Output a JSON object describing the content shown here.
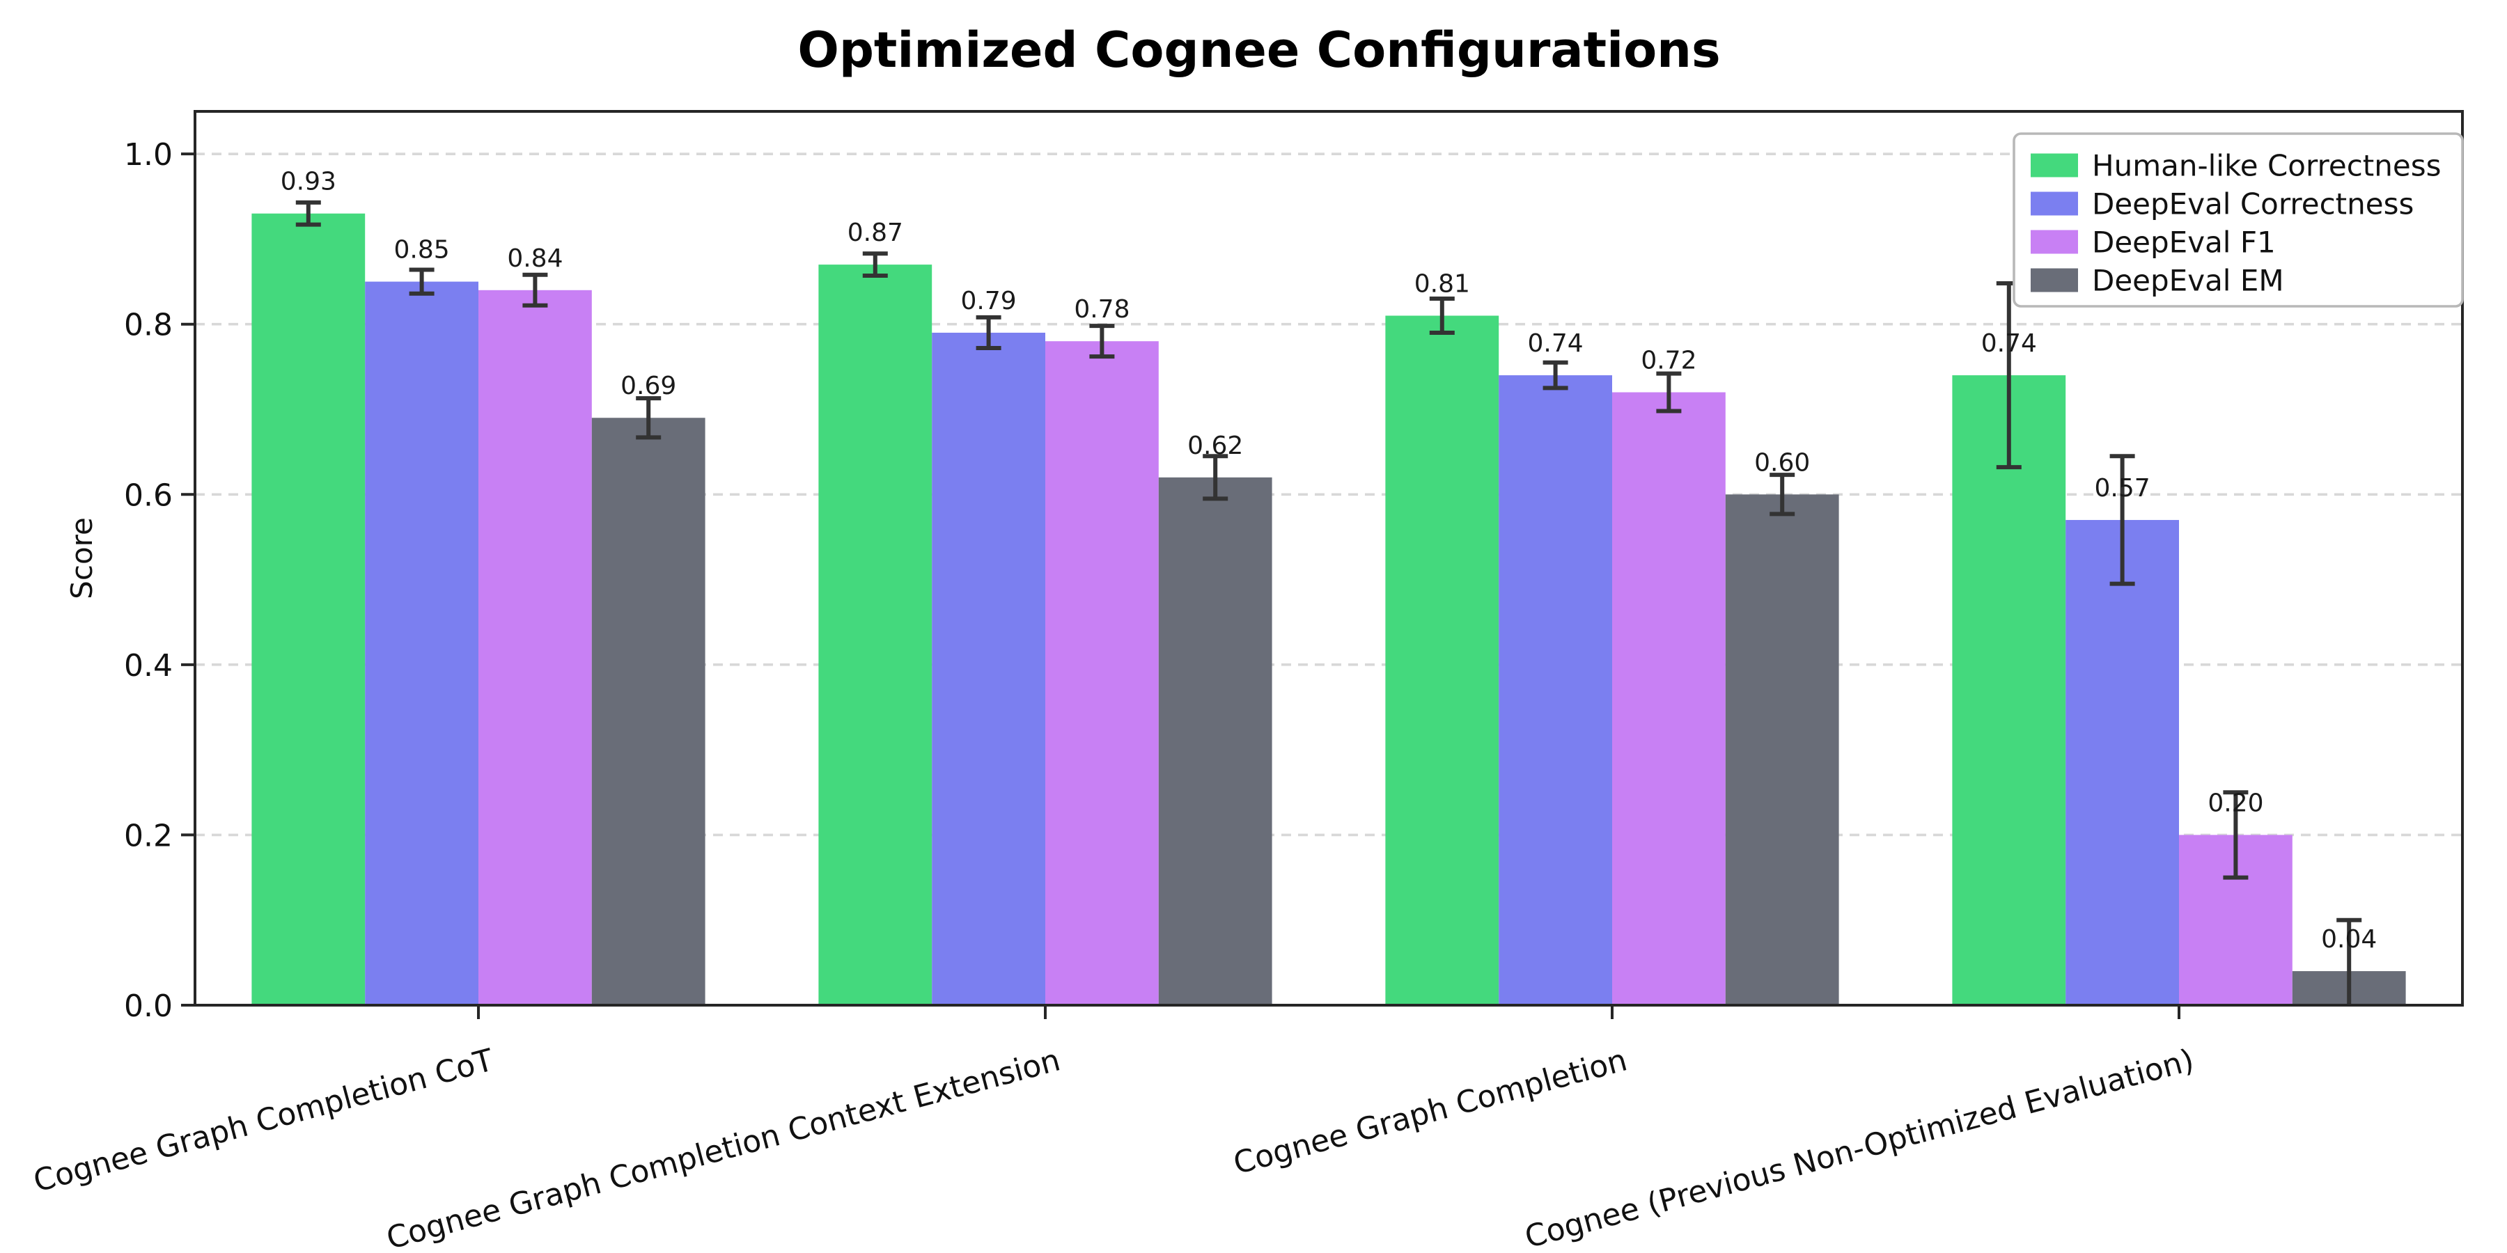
{
  "title": "Optimized Cognee Configurations",
  "chart_data": {
    "type": "bar",
    "title": "Optimized Cognee Configurations",
    "xlabel": "",
    "ylabel": "Score",
    "ylim": [
      0,
      1.05
    ],
    "yticks": [
      0.0,
      0.2,
      0.4,
      0.6,
      0.8,
      1.0
    ],
    "ytick_labels": [
      "0.0",
      "0.2",
      "0.4",
      "0.6",
      "0.8",
      "1.0"
    ],
    "grid": "dashed-horizontal",
    "grid_color": "#d8d8d8",
    "legend_position": "upper-right",
    "error_bar_color": "#333333",
    "value_label_format": "2dp",
    "x_tick_rotation_deg": 15,
    "categories": [
      "Cognee Graph Completion CoT",
      "Cognee Graph Completion Context Extension",
      "Cognee Graph Completion",
      "Cognee (Previous Non-Optimized Evaluation)"
    ],
    "series": [
      {
        "name": "Human-like Correctness",
        "color": "#44d97d",
        "values": [
          0.93,
          0.87,
          0.81,
          0.74
        ],
        "errors": [
          0.013,
          0.013,
          0.02,
          0.108
        ]
      },
      {
        "name": "DeepEval Correctness",
        "color": "#7b7ff0",
        "values": [
          0.85,
          0.79,
          0.74,
          0.57
        ],
        "errors": [
          0.014,
          0.018,
          0.015,
          0.075
        ]
      },
      {
        "name": "DeepEval F1",
        "color": "#c880f4",
        "values": [
          0.84,
          0.78,
          0.72,
          0.2
        ],
        "errors": [
          0.018,
          0.018,
          0.022,
          0.05
        ]
      },
      {
        "name": "DeepEval EM",
        "color": "#696d78",
        "values": [
          0.69,
          0.62,
          0.6,
          0.04
        ],
        "errors": [
          0.023,
          0.025,
          0.023,
          0.06
        ]
      }
    ]
  }
}
